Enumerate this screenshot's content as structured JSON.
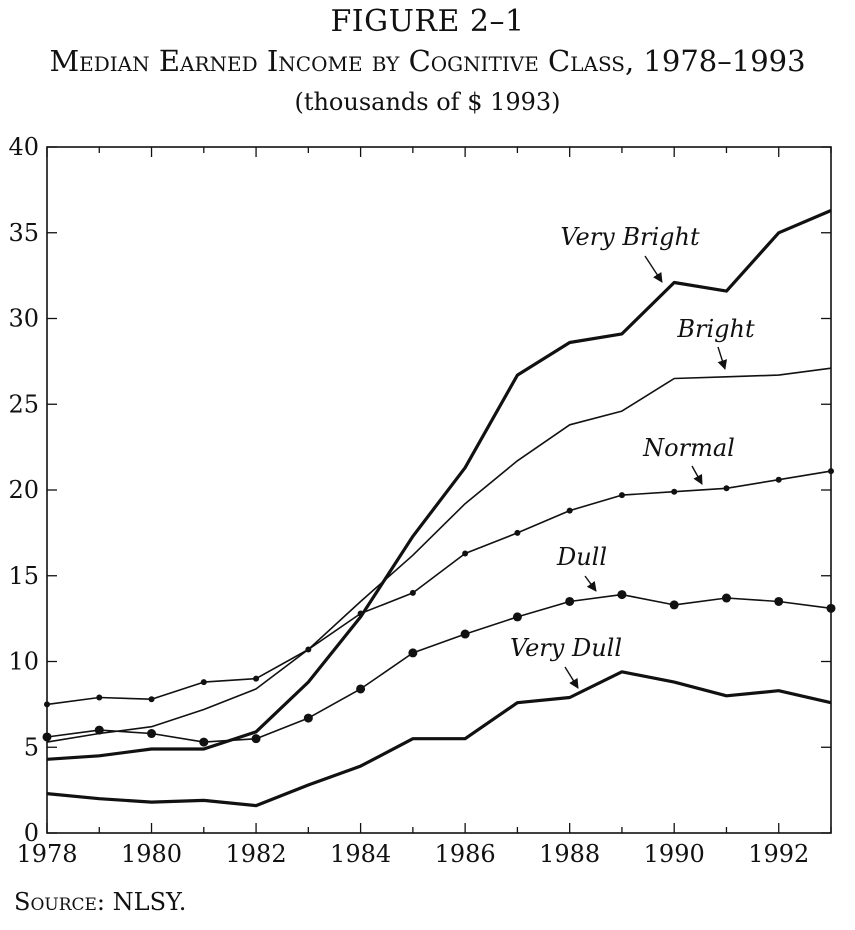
{
  "figure": {
    "label": "FIGURE 2–1",
    "title": "Median Earned Income by Cognitive Class, 1978–1993",
    "subtitle": "(thousands of $ 1993)",
    "source": "Source: NLSY."
  },
  "chart_data": {
    "type": "line",
    "title": "Median Earned Income by Cognitive Class, 1978–1993",
    "subtitle": "(thousands of $ 1993)",
    "xlabel": "",
    "ylabel": "",
    "xlim": [
      1978,
      1993
    ],
    "ylim": [
      0,
      40
    ],
    "x_ticks": [
      1978,
      1980,
      1982,
      1984,
      1986,
      1988,
      1990,
      1992
    ],
    "y_ticks": [
      0,
      5,
      10,
      15,
      20,
      25,
      30,
      35,
      40
    ],
    "grid": false,
    "legend": "direct labels with arrows",
    "x": [
      1978,
      1979,
      1980,
      1981,
      1982,
      1983,
      1984,
      1985,
      1986,
      1987,
      1988,
      1989,
      1990,
      1991,
      1992,
      1993
    ],
    "series": [
      {
        "name": "Very Bright",
        "marker": "none",
        "width": "thick",
        "values": [
          4.3,
          4.5,
          4.9,
          4.9,
          5.9,
          8.8,
          12.6,
          17.3,
          21.3,
          26.7,
          28.6,
          29.1,
          32.1,
          31.6,
          35.0,
          36.3
        ]
      },
      {
        "name": "Bright",
        "marker": "none",
        "width": "thin",
        "values": [
          5.3,
          5.8,
          6.2,
          7.2,
          8.4,
          10.7,
          13.5,
          16.2,
          19.2,
          21.7,
          23.8,
          24.6,
          26.5,
          26.6,
          26.7,
          27.1
        ]
      },
      {
        "name": "Normal",
        "marker": "small-dot",
        "width": "thin",
        "values": [
          7.5,
          7.9,
          7.8,
          8.8,
          9.0,
          10.7,
          12.8,
          14.0,
          16.3,
          17.5,
          18.8,
          19.7,
          19.9,
          20.1,
          20.6,
          21.1
        ]
      },
      {
        "name": "Dull",
        "marker": "dot",
        "width": "thin",
        "values": [
          5.6,
          6.0,
          5.8,
          5.3,
          5.5,
          6.7,
          8.4,
          10.5,
          11.6,
          12.6,
          13.5,
          13.9,
          13.3,
          13.7,
          13.5,
          13.1
        ]
      },
      {
        "name": "Very Dull",
        "marker": "none",
        "width": "thick",
        "values": [
          2.3,
          2.0,
          1.8,
          1.9,
          1.6,
          2.8,
          3.9,
          5.5,
          5.5,
          7.6,
          7.9,
          9.4,
          8.8,
          8.0,
          8.3,
          7.6
        ]
      }
    ],
    "annotations": [
      {
        "text": "Very Bright",
        "points_to_year": 1989,
        "points_to_value": 31.2
      },
      {
        "text": "Bright",
        "points_to_year": 1989.5,
        "points_to_value": 26.6
      },
      {
        "text": "Normal",
        "points_to_year": 1990.5,
        "points_to_value": 20.0
      },
      {
        "text": "Dull",
        "points_to_year": 1988.6,
        "points_to_value": 13.8
      },
      {
        "text": "Very Dull",
        "points_to_year": 1988.2,
        "points_to_value": 8.3
      }
    ]
  }
}
